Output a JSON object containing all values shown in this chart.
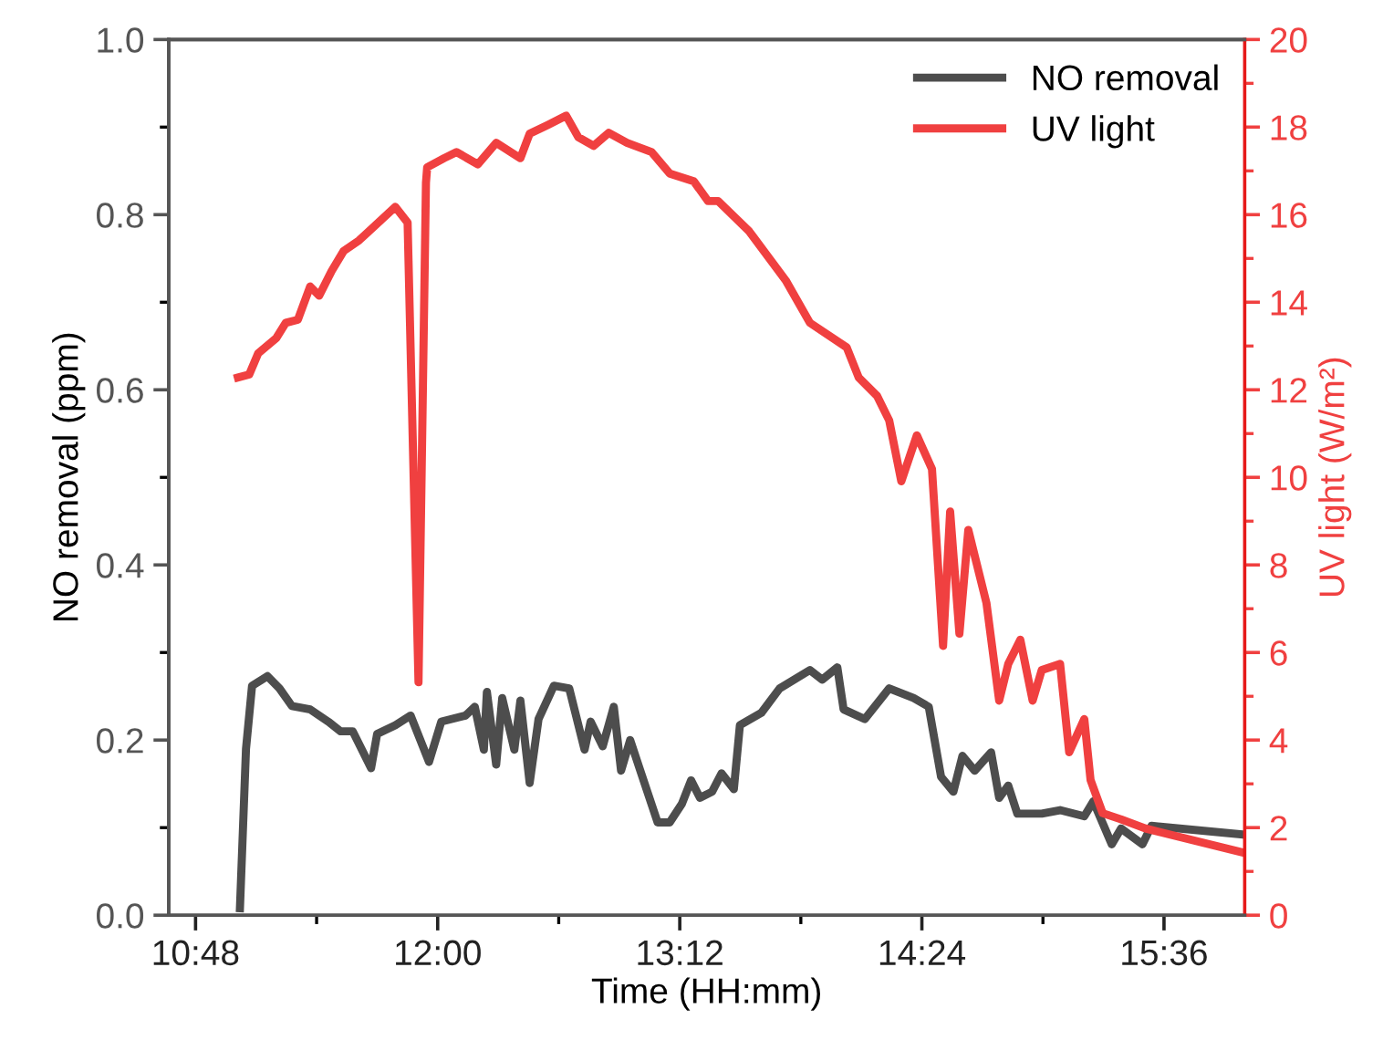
{
  "chart_data": {
    "type": "line",
    "xlabel": "Time (HH:mm)",
    "ylabel": "NO removal (ppm)",
    "y2label": "UV light (W/m²)",
    "xlim": [
      10.667,
      16.0
    ],
    "xticks": [
      {
        "value": 10.8,
        "label": "10:48"
      },
      {
        "value": 12.0,
        "label": "12:00"
      },
      {
        "value": 13.2,
        "label": "13:12"
      },
      {
        "value": 14.4,
        "label": "14:24"
      },
      {
        "value": 15.6,
        "label": "15:36"
      }
    ],
    "ylim": [
      0,
      1
    ],
    "yticks": [
      {
        "value": 0,
        "label": "0.0"
      },
      {
        "value": 0.2,
        "label": "0.2"
      },
      {
        "value": 0.4,
        "label": "0.4"
      },
      {
        "value": 0.6,
        "label": "0.6"
      },
      {
        "value": 0.8,
        "label": "0.8"
      },
      {
        "value": 1.0,
        "label": "1.0"
      }
    ],
    "y2lim": [
      0,
      20
    ],
    "y2ticks": [
      0,
      2,
      4,
      6,
      8,
      10,
      12,
      14,
      16,
      18,
      20
    ],
    "legend": "top right",
    "grid": false,
    "marker": "none",
    "line_style": "solid",
    "series": [
      {
        "name": "NO removal",
        "color": "#4d4d4d",
        "x": [
          11.02,
          11.05,
          11.08,
          11.156,
          11.216,
          11.277,
          11.368,
          11.458,
          11.519,
          11.579,
          11.67,
          11.7,
          11.79,
          11.866,
          11.957,
          12.018,
          12.138,
          12.184,
          12.229,
          12.244,
          12.29,
          12.32,
          12.38,
          12.41,
          12.456,
          12.5,
          12.576,
          12.652,
          12.728,
          12.758,
          12.818,
          12.873,
          12.909,
          12.954,
          13.0,
          13.09,
          13.15,
          13.21,
          13.256,
          13.3,
          13.36,
          13.407,
          13.468,
          13.498,
          13.604,
          13.695,
          13.845,
          13.906,
          13.981,
          14.012,
          14.117,
          14.238,
          14.359,
          14.434,
          14.495,
          14.556,
          14.601,
          14.662,
          14.743,
          14.783,
          14.828,
          14.873,
          14.994,
          15.085,
          15.205,
          15.25,
          15.341,
          15.387,
          15.493,
          15.538,
          16.0
        ],
        "values": [
          0.008,
          0.19,
          0.262,
          0.273,
          0.259,
          0.239,
          0.235,
          0.221,
          0.21,
          0.21,
          0.168,
          0.207,
          0.217,
          0.228,
          0.175,
          0.221,
          0.228,
          0.238,
          0.189,
          0.255,
          0.172,
          0.248,
          0.189,
          0.245,
          0.151,
          0.224,
          0.262,
          0.259,
          0.189,
          0.221,
          0.193,
          0.238,
          0.165,
          0.2,
          0.168,
          0.106,
          0.106,
          0.127,
          0.154,
          0.134,
          0.141,
          0.162,
          0.144,
          0.217,
          0.231,
          0.259,
          0.28,
          0.269,
          0.283,
          0.235,
          0.224,
          0.259,
          0.248,
          0.238,
          0.158,
          0.141,
          0.182,
          0.165,
          0.186,
          0.134,
          0.148,
          0.116,
          0.116,
          0.12,
          0.113,
          0.13,
          0.081,
          0.099,
          0.081,
          0.102,
          0.092
        ]
      },
      {
        "name": "UV light",
        "color": "#f04040",
        "axis": "y2",
        "x": [
          11.01,
          11.066,
          11.11,
          11.2,
          11.247,
          11.307,
          11.368,
          11.413,
          11.474,
          11.534,
          11.61,
          11.685,
          11.79,
          11.851,
          11.905,
          11.942,
          11.948,
          12.032,
          12.093,
          12.199,
          12.29,
          12.41,
          12.456,
          12.546,
          12.637,
          12.697,
          12.773,
          12.848,
          12.939,
          13.06,
          13.15,
          13.27,
          13.34,
          13.39,
          13.544,
          13.725,
          13.845,
          14.027,
          14.087,
          14.178,
          14.238,
          14.298,
          14.375,
          14.45,
          14.505,
          14.54,
          14.586,
          14.63,
          14.72,
          14.783,
          14.828,
          14.888,
          14.949,
          14.994,
          15.085,
          15.13,
          15.205,
          15.236,
          15.296,
          15.387,
          15.508,
          16.0
        ],
        "values": [
          12.28,
          12.35,
          12.83,
          13.18,
          13.53,
          13.6,
          14.36,
          14.15,
          14.71,
          15.17,
          15.41,
          15.73,
          16.18,
          15.82,
          5.32,
          16.73,
          17.08,
          17.29,
          17.43,
          17.15,
          17.64,
          17.29,
          17.85,
          18.05,
          18.26,
          17.77,
          17.57,
          17.87,
          17.64,
          17.43,
          16.94,
          16.76,
          16.31,
          16.31,
          15.62,
          14.5,
          13.53,
          12.97,
          12.28,
          11.86,
          11.3,
          9.91,
          10.96,
          10.19,
          6.15,
          9.22,
          6.43,
          8.8,
          7.13,
          4.9,
          5.74,
          6.29,
          4.9,
          5.6,
          5.74,
          3.72,
          4.48,
          3.09,
          2.33,
          2.19,
          1.98,
          1.42
        ]
      }
    ]
  }
}
